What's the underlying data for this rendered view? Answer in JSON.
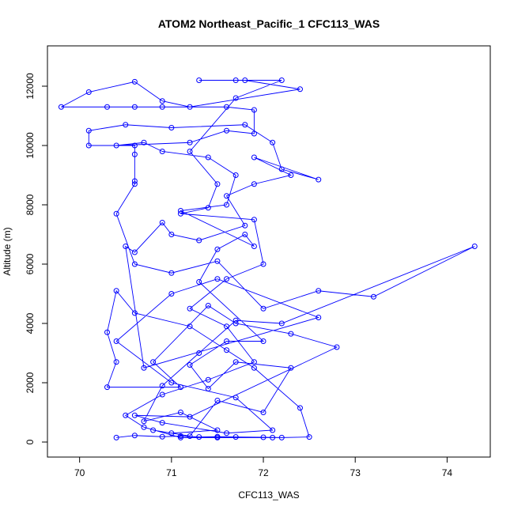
{
  "chart_data": {
    "type": "line",
    "title": "ATOM2 Northeast_Pacific_1 CFC113_WAS",
    "x_label": "CFC113_WAS",
    "y_label": "Altitude (m)",
    "color": "#0000ff",
    "x": [
      70.4,
      70.6,
      70.9,
      71.1,
      71.3,
      71.5,
      71.7,
      72.0,
      72.2,
      72.5,
      72.4,
      71.9,
      71.6,
      71.2,
      70.6,
      70.4,
      70.3,
      70.4,
      70.3,
      71.1,
      70.8,
      71.4,
      71.7,
      72.3,
      72.8,
      71.2,
      70.6,
      70.9,
      71.6,
      72.1,
      71.7,
      71.0,
      70.4,
      71.0,
      71.5,
      72.6,
      70.7,
      70.5,
      70.6,
      70.9,
      71.0,
      71.3,
      71.8,
      71.6,
      71.9,
      72.3,
      71.9,
      72.6,
      72.2,
      72.1,
      71.8,
      71.0,
      70.5,
      70.1,
      70.1,
      70.6,
      70.6,
      70.6,
      70.6,
      70.4,
      70.6,
      71.0,
      71.5,
      72.0,
      72.6,
      73.2,
      74.3,
      72.2,
      71.7,
      71.3,
      70.9,
      70.7,
      71.1,
      71.5,
      71.0,
      70.8,
      71.2,
      71.5,
      72.0,
      72.3,
      71.7,
      71.4,
      71.2,
      71.6,
      72.0,
      71.3,
      71.5,
      71.8,
      71.9,
      71.1,
      71.6,
      71.7,
      71.4,
      70.9,
      70.7,
      70.4,
      71.2,
      71.6,
      71.9,
      71.9,
      71.6,
      70.9,
      70.6,
      70.3,
      69.8,
      70.1,
      70.6,
      70.9,
      71.2,
      72.4,
      71.8,
      71.3,
      71.7,
      72.2,
      71.7,
      71.2,
      71.5,
      71.4,
      71.1,
      71.9,
      72.0,
      71.6,
      71.2,
      71.6,
      71.9,
      71.4,
      70.9,
      70.5,
      70.7,
      71.1,
      71.5,
      72.1
    ],
    "values": [
      150,
      220,
      180,
      200,
      170,
      180,
      170,
      160,
      150,
      170,
      1150,
      2500,
      3100,
      3900,
      4350,
      5100,
      3700,
      2700,
      1850,
      1850,
      2700,
      4600,
      4000,
      3650,
      3200,
      850,
      900,
      650,
      300,
      400,
      1500,
      2000,
      3400,
      5000,
      5500,
      4200,
      2500,
      6600,
      6400,
      7400,
      7000,
      6800,
      7300,
      8300,
      8700,
      9000,
      9600,
      8850,
      9200,
      10100,
      10700,
      10600,
      10700,
      10500,
      10000,
      10000,
      9700,
      8800,
      8700,
      7700,
      6000,
      5700,
      6100,
      4500,
      5100,
      4900,
      6600,
      4000,
      4100,
      3000,
      1900,
      700,
      1000,
      400,
      300,
      400,
      200,
      1400,
      1000,
      2500,
      2700,
      1800,
      2600,
      3400,
      3400,
      5400,
      6500,
      7000,
      6600,
      7800,
      8000,
      9000,
      9600,
      9800,
      10100,
      10000,
      10100,
      10500,
      10400,
      11200,
      11300,
      11300,
      11300,
      11300,
      11300,
      11800,
      12150,
      11500,
      11300,
      11900,
      12200,
      12200,
      12200,
      12200,
      11600,
      9800,
      8700,
      7900,
      7700,
      7500,
      6000,
      5500,
      4500,
      3900,
      2700,
      2100,
      1600,
      900,
      500,
      150,
      150,
      150
    ],
    "xlim": [
      69.65,
      74.47
    ],
    "ylim": [
      -507,
      13360
    ],
    "xticks": [
      70,
      71,
      72,
      73,
      74
    ],
    "yticks": [
      0,
      2000,
      4000,
      6000,
      8000,
      10000,
      12000
    ]
  }
}
